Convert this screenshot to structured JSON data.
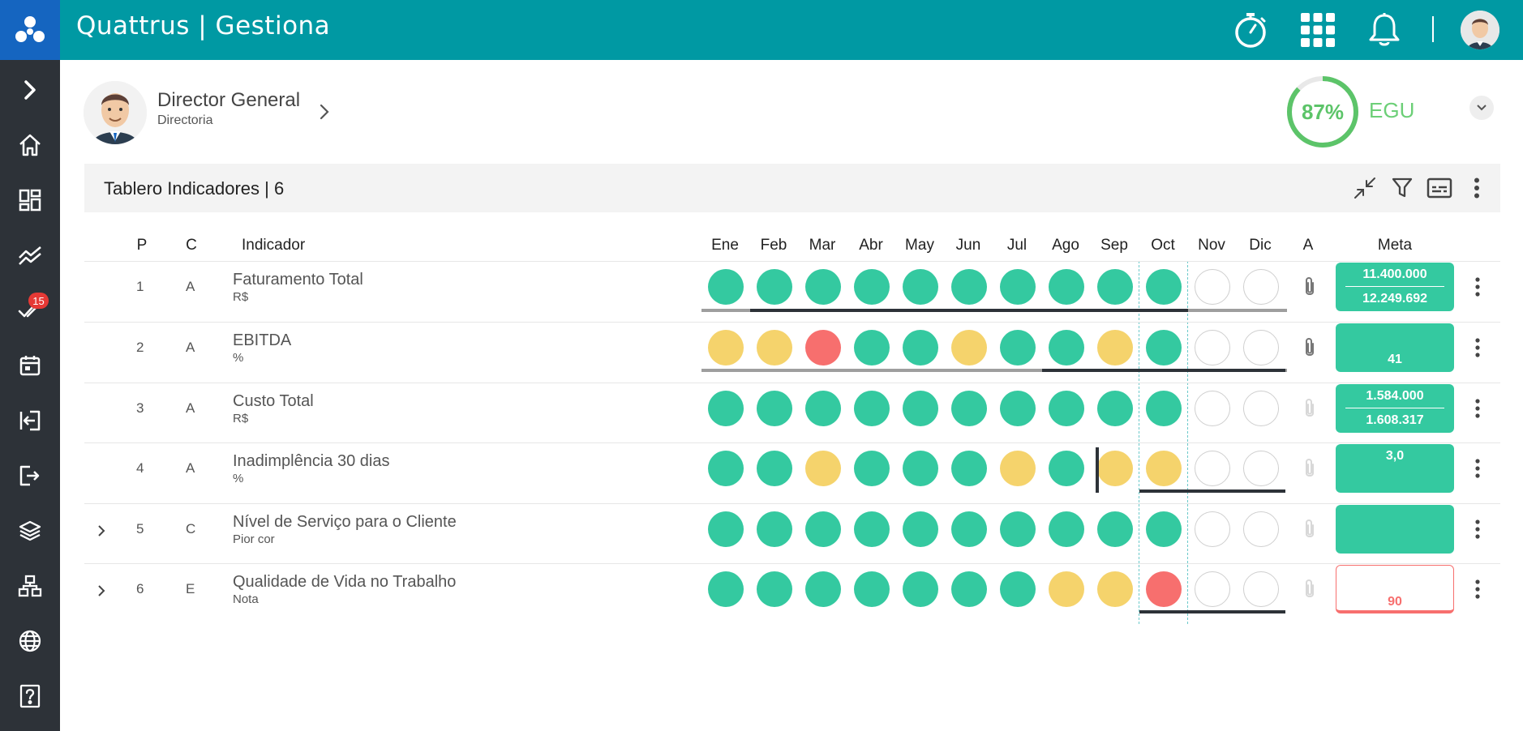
{
  "header": {
    "brand": "Quattrus | Gestiona"
  },
  "sidebar": {
    "badge_count": "15",
    "items": [
      "expand-icon",
      "home-icon",
      "dashboard-icon",
      "trend-icon",
      "check-icon",
      "calendar-icon",
      "login-icon",
      "logout-icon",
      "layers-icon",
      "hierarchy-icon",
      "globe-icon",
      "help-icon"
    ]
  },
  "profile": {
    "name": "Director General",
    "department": "Directoria",
    "score_text": "87%",
    "score": 0.87,
    "unit_code": "EGU"
  },
  "panel": {
    "title": "Tablero Indicadores | 6"
  },
  "table": {
    "headers": {
      "p": "P",
      "c": "C",
      "indicator": "Indicador",
      "a": "A",
      "meta": "Meta"
    },
    "months": [
      "Ene",
      "Feb",
      "Mar",
      "Abr",
      "May",
      "Jun",
      "Jul",
      "Ago",
      "Sep",
      "Oct",
      "Nov",
      "Dic"
    ],
    "rows": [
      {
        "p": "1",
        "c": "A",
        "name": "Faturamento Total",
        "unit": "R$",
        "statuses": [
          "green",
          "green",
          "green",
          "green",
          "green",
          "green",
          "green",
          "green",
          "green",
          "green",
          "empty",
          "empty"
        ],
        "meta_top": "11.400.000",
        "meta_bottom": "12.249.692",
        "meta_style": "green",
        "attach": true,
        "expandable": false
      },
      {
        "p": "2",
        "c": "A",
        "name": "EBITDA",
        "unit": "%",
        "statuses": [
          "yellow",
          "yellow",
          "red",
          "green",
          "green",
          "yellow",
          "green",
          "green",
          "yellow",
          "green",
          "empty",
          "empty"
        ],
        "meta_top": "",
        "meta_bottom": "41",
        "meta_style": "green",
        "attach": true,
        "expandable": false
      },
      {
        "p": "3",
        "c": "A",
        "name": "Custo Total",
        "unit": "R$",
        "statuses": [
          "green",
          "green",
          "green",
          "green",
          "green",
          "green",
          "green",
          "green",
          "green",
          "green",
          "empty",
          "empty"
        ],
        "meta_top": "1.584.000",
        "meta_bottom": "1.608.317",
        "meta_style": "green",
        "attach": false,
        "expandable": false
      },
      {
        "p": "4",
        "c": "A",
        "name": "Inadimplência 30 dias",
        "unit": "%",
        "statuses": [
          "green",
          "green",
          "yellow",
          "green",
          "green",
          "green",
          "yellow",
          "green",
          "yellow",
          "yellow",
          "empty",
          "empty"
        ],
        "meta_top": "3,0",
        "meta_bottom": "",
        "meta_style": "green",
        "attach": false,
        "expandable": false
      },
      {
        "p": "5",
        "c": "C",
        "name": "Nível de Serviço para o Cliente",
        "unit": "Pior cor",
        "statuses": [
          "green",
          "green",
          "green",
          "green",
          "green",
          "green",
          "green",
          "green",
          "green",
          "green",
          "empty",
          "empty"
        ],
        "meta_top": "",
        "meta_bottom": "",
        "meta_style": "green",
        "attach": false,
        "expandable": true
      },
      {
        "p": "6",
        "c": "E",
        "name": "Qualidade de Vida no Trabalho",
        "unit": "Nota",
        "statuses": [
          "green",
          "green",
          "green",
          "green",
          "green",
          "green",
          "green",
          "yellow",
          "yellow",
          "red",
          "empty",
          "empty"
        ],
        "meta_top": "",
        "meta_bottom": "90",
        "meta_style": "red",
        "attach": false,
        "expandable": true
      }
    ]
  },
  "colors": {
    "green": "#34c9a0",
    "yellow": "#f5d36c",
    "red": "#f76f6e",
    "header": "#0099a3",
    "sidebar": "#2d3238"
  }
}
